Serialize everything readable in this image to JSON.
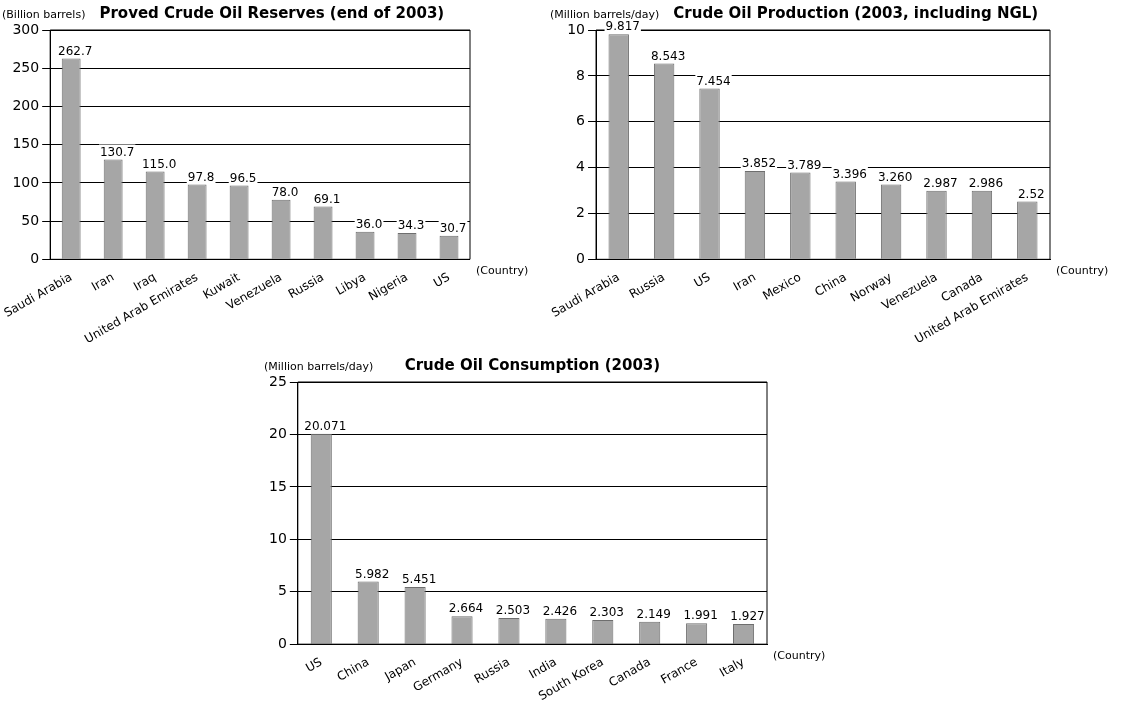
{
  "chart_data": [
    {
      "type": "bar",
      "title": "Proved Crude Oil Reserves (end of 2003)",
      "ylabel": "(Billion barrels)",
      "xlabel": "(Country)",
      "categories": [
        "Saudi Arabia",
        "Iran",
        "Iraq",
        "United Arab Emirates",
        "Kuwait",
        "Venezuela",
        "Russia",
        "Libya",
        "Nigeria",
        "US"
      ],
      "values": [
        262.7,
        130.7,
        115.0,
        97.8,
        96.5,
        78.0,
        69.1,
        36.0,
        34.3,
        30.7
      ],
      "value_labels": [
        "262.7",
        "130.7",
        "115.0",
        "97.8",
        "96.5",
        "78.0",
        "69.1",
        "36.0",
        "34.3",
        "30.7"
      ],
      "color": "#a6a6a6",
      "ylim": [
        0,
        300
      ],
      "yticks": [
        0,
        50,
        100,
        150,
        200,
        250,
        300
      ],
      "grid": "y",
      "legend": false
    },
    {
      "type": "bar",
      "title": "Crude Oil Production (2003, including NGL)",
      "ylabel": "(Million barrels/day)",
      "xlabel": "(Country)",
      "categories": [
        "Saudi Arabia",
        "Russia",
        "US",
        "Iran",
        "Mexico",
        "China",
        "Norway",
        "Venezuela",
        "Canada",
        "United Arab Emirates"
      ],
      "values": [
        9.817,
        8.543,
        7.454,
        3.852,
        3.789,
        3.396,
        3.26,
        2.987,
        2.986,
        2.52
      ],
      "value_labels": [
        "9.817",
        "8.543",
        "7.454",
        "3.852",
        "3.789",
        "3.396",
        "3.260",
        "2.987",
        "2.986",
        "2.52"
      ],
      "color": "#a6a6a6",
      "ylim": [
        0,
        10
      ],
      "yticks": [
        0,
        2,
        4,
        6,
        8,
        10
      ],
      "grid": "y",
      "legend": false
    },
    {
      "type": "bar",
      "title": "Crude Oil Consumption (2003)",
      "ylabel": "(Million barrels/day)",
      "xlabel": "(Country)",
      "categories": [
        "US",
        "China",
        "Japan",
        "Germany",
        "Russia",
        "India",
        "South Korea",
        "Canada",
        "France",
        "Italy"
      ],
      "values": [
        20.071,
        5.982,
        5.451,
        2.664,
        2.503,
        2.426,
        2.303,
        2.149,
        1.991,
        1.927
      ],
      "value_labels": [
        "20.071",
        "5.982",
        "5.451",
        "2.664",
        "2.503",
        "2.426",
        "2.303",
        "2.149",
        "1.991",
        "1.927"
      ],
      "color": "#a6a6a6",
      "ylim": [
        0,
        25
      ],
      "yticks": [
        0,
        5,
        10,
        15,
        20,
        25
      ],
      "grid": "y",
      "legend": false
    }
  ]
}
